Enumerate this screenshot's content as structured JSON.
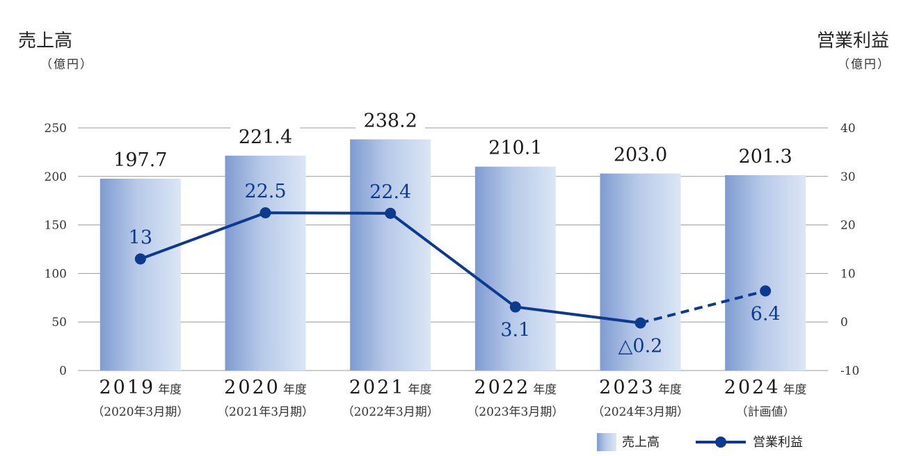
{
  "left_axis": {
    "title": "売上高",
    "unit": "（億円）"
  },
  "right_axis": {
    "title": "営業利益",
    "unit": "（億円）"
  },
  "colors": {
    "bar_dark": "#7f9bd0",
    "bar_light": "#dbe6f5",
    "line": "#0d3a8f",
    "grid": "#9a9a9a"
  },
  "chart_data": {
    "type": "bar",
    "categories": [
      {
        "year": "2019",
        "suffix": "年度",
        "sub": "（2020年3月期）"
      },
      {
        "year": "2020",
        "suffix": "年度",
        "sub": "（2021年3月期）"
      },
      {
        "year": "2021",
        "suffix": "年度",
        "sub": "（2022年3月期）"
      },
      {
        "year": "2022",
        "suffix": "年度",
        "sub": "（2023年3月期）"
      },
      {
        "year": "2023",
        "suffix": "年度",
        "sub": "（2024年3月期）"
      },
      {
        "year": "2024",
        "suffix": "年度",
        "sub": "（計画値）"
      }
    ],
    "left_ylim": [
      0,
      250
    ],
    "left_ticks": [
      0,
      50,
      100,
      150,
      200,
      250
    ],
    "right_ylim": [
      -10,
      40
    ],
    "right_ticks": [
      -10,
      0,
      10,
      20,
      30,
      40
    ],
    "series": [
      {
        "name": "売上高",
        "type": "bar",
        "axis": "left",
        "values": [
          197.7,
          221.4,
          238.2,
          210.1,
          203.0,
          201.3
        ],
        "labels": [
          "197.7",
          "221.4",
          "238.2",
          "210.1",
          "203.0",
          "201.3"
        ]
      },
      {
        "name": "営業利益",
        "type": "line",
        "axis": "right",
        "values": [
          13,
          22.5,
          22.4,
          3.1,
          -0.2,
          6.4
        ],
        "labels": [
          "13",
          "22.5",
          "22.4",
          "3.1",
          "△0.2",
          "6.4"
        ],
        "dashed_last_segment": true
      }
    ],
    "grid": true,
    "legend_position": "bottom-right"
  }
}
